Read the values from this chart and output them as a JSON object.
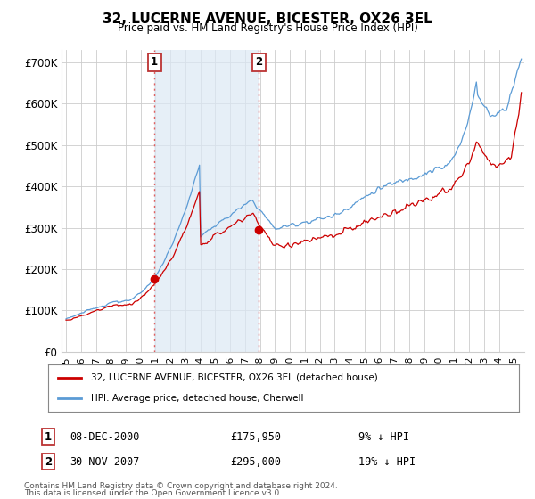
{
  "title": "32, LUCERNE AVENUE, BICESTER, OX26 3EL",
  "subtitle": "Price paid vs. HM Land Registry's House Price Index (HPI)",
  "ylabel_ticks": [
    "£0",
    "£100K",
    "£200K",
    "£300K",
    "£400K",
    "£500K",
    "£600K",
    "£700K"
  ],
  "ytick_values": [
    0,
    100000,
    200000,
    300000,
    400000,
    500000,
    600000,
    700000
  ],
  "ylim": [
    0,
    730000
  ],
  "hpi_color": "#5b9bd5",
  "hpi_fill_color": "#dce9f5",
  "price_color": "#cc0000",
  "vline_color": "#e06060",
  "marker1_year": 2000.92,
  "marker1_price": 175950,
  "marker1_label": "1",
  "marker1_date": "08-DEC-2000",
  "marker1_price_str": "£175,950",
  "marker1_hpi_pct": "9% ↓ HPI",
  "marker2_year": 2007.92,
  "marker2_price": 295000,
  "marker2_label": "2",
  "marker2_date": "30-NOV-2007",
  "marker2_price_str": "£295,000",
  "marker2_hpi_pct": "19% ↓ HPI",
  "legend_entry1": "32, LUCERNE AVENUE, BICESTER, OX26 3EL (detached house)",
  "legend_entry2": "HPI: Average price, detached house, Cherwell",
  "footnote_line1": "Contains HM Land Registry data © Crown copyright and database right 2024.",
  "footnote_line2": "This data is licensed under the Open Government Licence v3.0.",
  "background_color": "#ffffff",
  "grid_color": "#cccccc",
  "seed": 123
}
